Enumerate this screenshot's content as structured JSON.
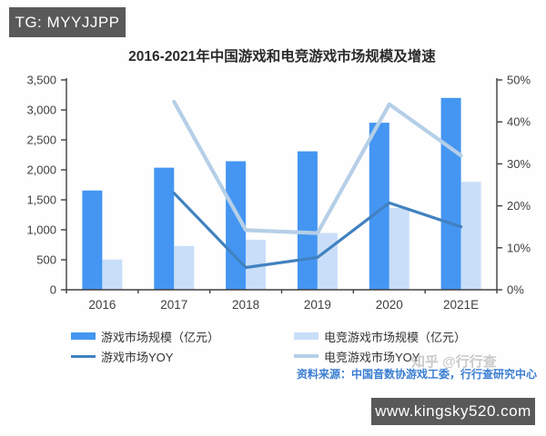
{
  "badges": {
    "top_left": "TG: MYYJJPP",
    "bottom_right": "www.kingsky520.com"
  },
  "watermark": "知乎 @行行查",
  "source_note": "资料来源：中国音数协游戏工委，行行查研究中心",
  "colors": {
    "game_bar": "#4496f2",
    "esports_bar": "#c9def8",
    "game_line": "#4181c0",
    "esports_line": "#b5cfe7",
    "axis": "#3f3f3f",
    "badge_bg": "#595959",
    "source_text": "#3a7ed2"
  },
  "chart_data": {
    "type": "combo (grouped bar + line, dual axis)",
    "title": "2016-2021年中国游戏和电竞游戏市场规模及增速",
    "categories": [
      "2016",
      "2017",
      "2018",
      "2019",
      "2020",
      "2021E"
    ],
    "left_axis": {
      "min": 0,
      "max": 3500,
      "step": 500,
      "tick_labels": [
        "0",
        "500",
        "1,000",
        "1,500",
        "2,000",
        "2,500",
        "3,000",
        "3,500"
      ]
    },
    "right_axis": {
      "min": 0,
      "max": 50,
      "step": 10,
      "tick_labels": [
        "0%",
        "10%",
        "20%",
        "30%",
        "40%",
        "50%"
      ]
    },
    "series": [
      {
        "name": "游戏市场规模（亿元）",
        "type": "bar",
        "axis": "left",
        "color": "#4496f2",
        "values": [
          1655.7,
          2036.1,
          2144.4,
          2308.8,
          2786.9,
          3200
        ]
      },
      {
        "name": "电竞游戏市场规模（亿元）",
        "type": "bar",
        "axis": "left",
        "color": "#c9def8",
        "values": [
          504.6,
          730,
          834.8,
          947.3,
          1365.6,
          1800
        ]
      },
      {
        "name": "游戏市场YOY",
        "type": "line",
        "axis": "right",
        "color": "#4181c0",
        "values": [
          null,
          23.0,
          5.3,
          7.7,
          20.7,
          15.0
        ]
      },
      {
        "name": "电竞游戏市场YOY",
        "type": "line",
        "axis": "right",
        "color": "#b5cfe7",
        "values": [
          null,
          44.8,
          14.2,
          13.5,
          44.2,
          32.0
        ]
      }
    ],
    "legend_position": "bottom",
    "grid": false
  }
}
